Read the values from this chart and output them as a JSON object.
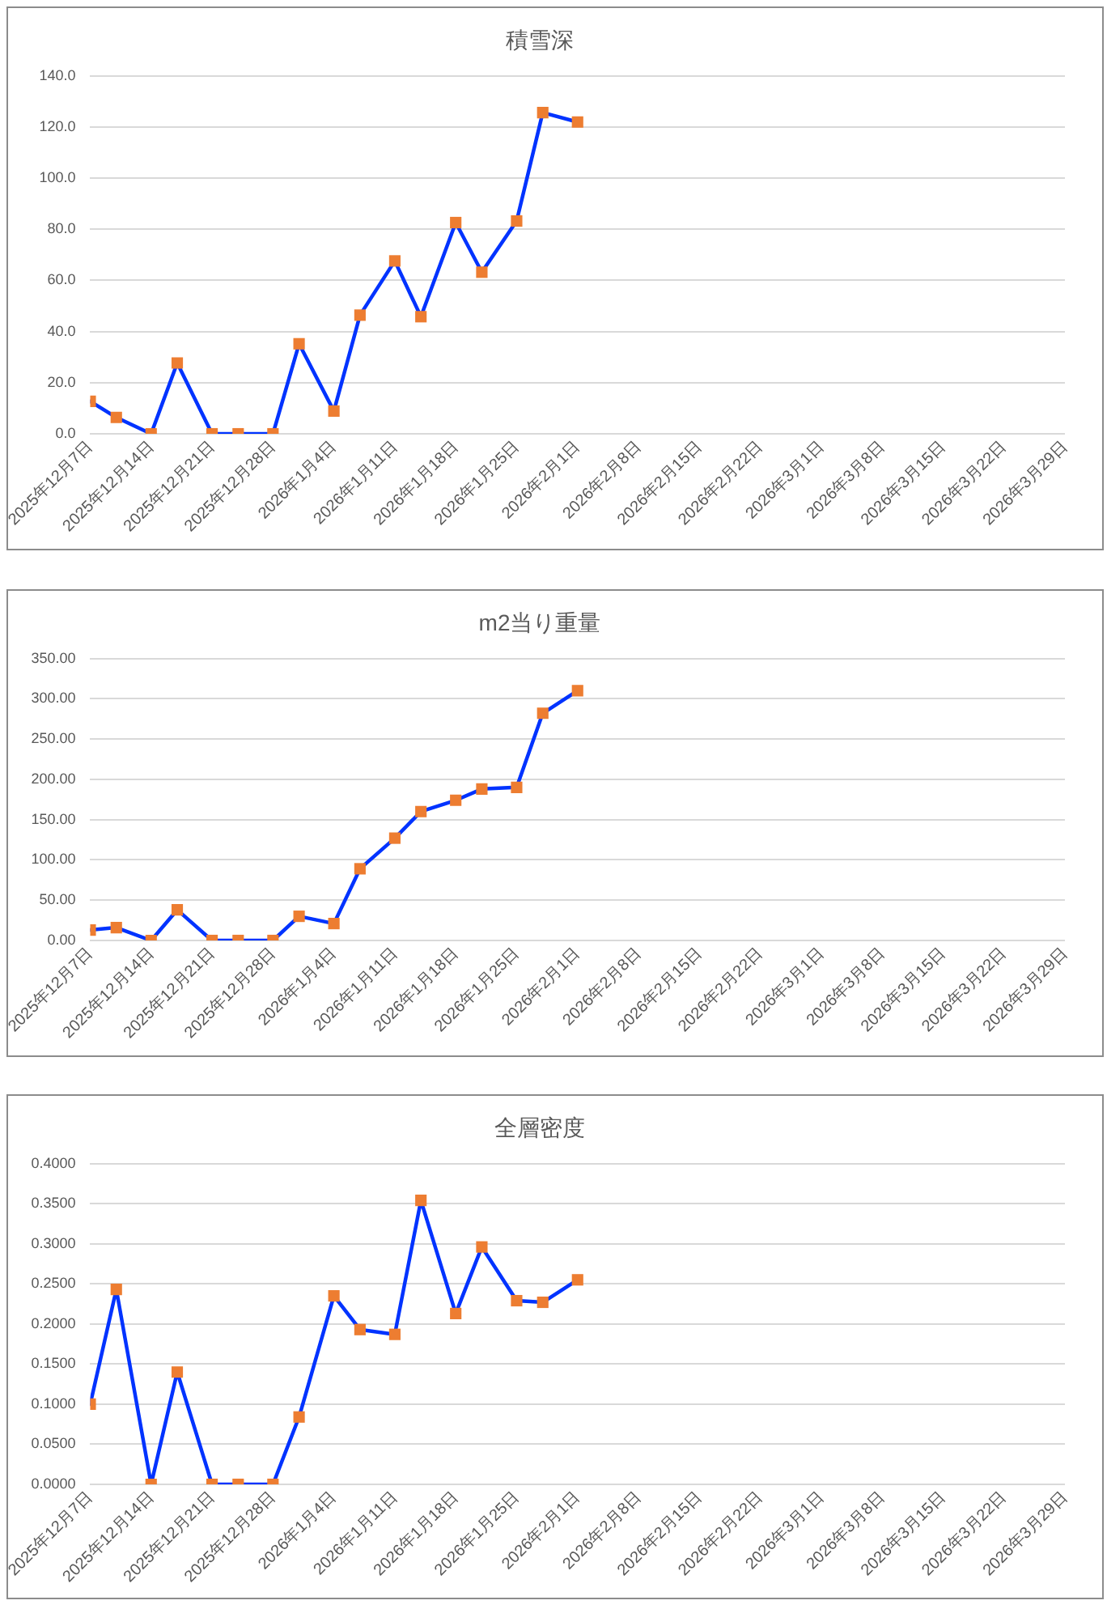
{
  "chart_data": [
    {
      "type": "line",
      "title": "積雪深",
      "x": [
        "2025-12-07",
        "2025-12-10",
        "2025-12-14",
        "2025-12-17",
        "2025-12-21",
        "2025-12-24",
        "2025-12-28",
        "2025-12-31",
        "2026-01-04",
        "2026-01-07",
        "2026-01-11",
        "2026-01-14",
        "2026-01-18",
        "2026-01-21",
        "2026-01-25",
        "2026-01-28",
        "2026-02-01"
      ],
      "values": [
        12.7,
        6.4,
        0,
        27.7,
        0,
        0,
        0,
        35.2,
        8.9,
        46.4,
        67.6,
        45.8,
        82.6,
        63.2,
        83.2,
        125.6,
        121.9
      ],
      "color": "#0033ff",
      "colors": [
        "#ed7d31",
        "#ed7d31",
        "#ed7d31",
        "#ed7d31",
        "#ed7d31",
        "#ed7d31",
        "#ed7d31",
        "#ed7d31",
        "#ed7d31",
        "#ed7d31",
        "#ed7d31",
        "#ed7d31",
        "#ed7d31",
        "#ed7d31",
        "#ed7d31",
        "#ed7d31",
        "#ed7d31"
      ],
      "marker": "square",
      "line_style": "solid",
      "grid": "y",
      "xlim": [
        "2025-12-07",
        "2026-03-29"
      ],
      "xticks": [
        {
          "value": "2025-12-07",
          "label": "2025年12月7日"
        },
        {
          "value": "2025-12-14",
          "label": "2025年12月14日"
        },
        {
          "value": "2025-12-21",
          "label": "2025年12月21日"
        },
        {
          "value": "2025-12-28",
          "label": "2025年12月28日"
        },
        {
          "value": "2026-01-04",
          "label": "2026年1月4日"
        },
        {
          "value": "2026-01-11",
          "label": "2026年1月11日"
        },
        {
          "value": "2026-01-18",
          "label": "2026年1月18日"
        },
        {
          "value": "2026-01-25",
          "label": "2026年1月25日"
        },
        {
          "value": "2026-02-01",
          "label": "2026年2月1日"
        },
        {
          "value": "2026-02-08",
          "label": "2026年2月8日"
        },
        {
          "value": "2026-02-15",
          "label": "2026年2月15日"
        },
        {
          "value": "2026-02-22",
          "label": "2026年2月22日"
        },
        {
          "value": "2026-03-01",
          "label": "2026年3月1日"
        },
        {
          "value": "2026-03-08",
          "label": "2026年3月8日"
        },
        {
          "value": "2026-03-15",
          "label": "2026年3月15日"
        },
        {
          "value": "2026-03-22",
          "label": "2026年3月22日"
        },
        {
          "value": "2026-03-29",
          "label": "2026年3月29日"
        }
      ],
      "ylim": [
        0,
        140
      ],
      "yticks": [
        {
          "value": 0,
          "label": "0.0"
        },
        {
          "value": 20,
          "label": "20.0"
        },
        {
          "value": 40,
          "label": "40.0"
        },
        {
          "value": 60,
          "label": "60.0"
        },
        {
          "value": 80,
          "label": "80.0"
        },
        {
          "value": 100,
          "label": "100.0"
        },
        {
          "value": 120,
          "label": "120.0"
        },
        {
          "value": 140,
          "label": "140.0"
        }
      ]
    },
    {
      "type": "line",
      "title": "m2当り重量",
      "x": [
        "2025-12-07",
        "2025-12-10",
        "2025-12-14",
        "2025-12-17",
        "2025-12-21",
        "2025-12-24",
        "2025-12-28",
        "2025-12-31",
        "2026-01-04",
        "2026-01-07",
        "2026-01-11",
        "2026-01-14",
        "2026-01-18",
        "2026-01-21",
        "2026-01-25",
        "2026-01-28",
        "2026-02-01"
      ],
      "values": [
        13,
        16,
        0,
        38,
        0,
        0,
        0,
        30,
        21,
        89,
        127,
        160,
        174,
        188,
        190,
        282,
        310
      ],
      "color": "#0033ff",
      "colors": [
        "#ed7d31",
        "#ed7d31",
        "#ed7d31",
        "#ed7d31",
        "#ed7d31",
        "#ed7d31",
        "#ed7d31",
        "#ed7d31",
        "#ed7d31",
        "#ed7d31",
        "#ed7d31",
        "#ed7d31",
        "#ed7d31",
        "#ed7d31",
        "#ed7d31",
        "#ed7d31",
        "#ed7d31"
      ],
      "marker": "square",
      "line_style": "solid",
      "grid": "y",
      "xlim": [
        "2025-12-07",
        "2026-03-29"
      ],
      "xticks": [
        {
          "value": "2025-12-07",
          "label": "2025年12月7日"
        },
        {
          "value": "2025-12-14",
          "label": "2025年12月14日"
        },
        {
          "value": "2025-12-21",
          "label": "2025年12月21日"
        },
        {
          "value": "2025-12-28",
          "label": "2025年12月28日"
        },
        {
          "value": "2026-01-04",
          "label": "2026年1月4日"
        },
        {
          "value": "2026-01-11",
          "label": "2026年1月11日"
        },
        {
          "value": "2026-01-18",
          "label": "2026年1月18日"
        },
        {
          "value": "2026-01-25",
          "label": "2026年1月25日"
        },
        {
          "value": "2026-02-01",
          "label": "2026年2月1日"
        },
        {
          "value": "2026-02-08",
          "label": "2026年2月8日"
        },
        {
          "value": "2026-02-15",
          "label": "2026年2月15日"
        },
        {
          "value": "2026-02-22",
          "label": "2026年2月22日"
        },
        {
          "value": "2026-03-01",
          "label": "2026年3月1日"
        },
        {
          "value": "2026-03-08",
          "label": "2026年3月8日"
        },
        {
          "value": "2026-03-15",
          "label": "2026年3月15日"
        },
        {
          "value": "2026-03-22",
          "label": "2026年3月22日"
        },
        {
          "value": "2026-03-29",
          "label": "2026年3月29日"
        }
      ],
      "ylim": [
        0,
        350
      ],
      "yticks": [
        {
          "value": 0,
          "label": "0.00"
        },
        {
          "value": 50,
          "label": "50.00"
        },
        {
          "value": 100,
          "label": "100.00"
        },
        {
          "value": 150,
          "label": "150.00"
        },
        {
          "value": 200,
          "label": "200.00"
        },
        {
          "value": 250,
          "label": "250.00"
        },
        {
          "value": 300,
          "label": "300.00"
        },
        {
          "value": 350,
          "label": "350.00"
        }
      ]
    },
    {
      "type": "line",
      "title": "全層密度",
      "x": [
        "2025-12-07",
        "2025-12-10",
        "2025-12-14",
        "2025-12-17",
        "2025-12-21",
        "2025-12-24",
        "2025-12-28",
        "2025-12-31",
        "2026-01-04",
        "2026-01-07",
        "2026-01-11",
        "2026-01-14",
        "2026-01-18",
        "2026-01-21",
        "2026-01-25",
        "2026-01-28",
        "2026-02-01"
      ],
      "values": [
        0.1,
        0.243,
        0,
        0.14,
        0,
        0,
        0,
        0.084,
        0.235,
        0.193,
        0.187,
        0.354,
        0.213,
        0.296,
        0.229,
        0.227,
        0.255
      ],
      "color": "#0033ff",
      "colors": [
        "#ed7d31",
        "#ed7d31",
        "#ed7d31",
        "#ed7d31",
        "#ed7d31",
        "#ed7d31",
        "#ed7d31",
        "#ed7d31",
        "#ed7d31",
        "#ed7d31",
        "#ed7d31",
        "#ed7d31",
        "#ed7d31",
        "#ed7d31",
        "#ed7d31",
        "#ed7d31",
        "#ed7d31"
      ],
      "marker": "square",
      "line_style": "solid",
      "grid": "y",
      "xlim": [
        "2025-12-07",
        "2026-03-29"
      ],
      "xticks": [
        {
          "value": "2025-12-07",
          "label": "2025年12月7日"
        },
        {
          "value": "2025-12-14",
          "label": "2025年12月14日"
        },
        {
          "value": "2025-12-21",
          "label": "2025年12月21日"
        },
        {
          "value": "2025-12-28",
          "label": "2025年12月28日"
        },
        {
          "value": "2026-01-04",
          "label": "2026年1月4日"
        },
        {
          "value": "2026-01-11",
          "label": "2026年1月11日"
        },
        {
          "value": "2026-01-18",
          "label": "2026年1月18日"
        },
        {
          "value": "2026-01-25",
          "label": "2026年1月25日"
        },
        {
          "value": "2026-02-01",
          "label": "2026年2月1日"
        },
        {
          "value": "2026-02-08",
          "label": "2026年2月8日"
        },
        {
          "value": "2026-02-15",
          "label": "2026年2月15日"
        },
        {
          "value": "2026-02-22",
          "label": "2026年2月22日"
        },
        {
          "value": "2026-03-01",
          "label": "2026年3月1日"
        },
        {
          "value": "2026-03-08",
          "label": "2026年3月8日"
        },
        {
          "value": "2026-03-15",
          "label": "2026年3月15日"
        },
        {
          "value": "2026-03-22",
          "label": "2026年3月22日"
        },
        {
          "value": "2026-03-29",
          "label": "2026年3月29日"
        }
      ],
      "ylim": [
        0,
        0.4
      ],
      "yticks": [
        {
          "value": 0,
          "label": "0.0000"
        },
        {
          "value": 0.05,
          "label": "0.0500"
        },
        {
          "value": 0.1,
          "label": "0.1000"
        },
        {
          "value": 0.15,
          "label": "0.1500"
        },
        {
          "value": 0.2,
          "label": "0.2000"
        },
        {
          "value": 0.25,
          "label": "0.2500"
        },
        {
          "value": 0.3,
          "label": "0.3000"
        },
        {
          "value": 0.35,
          "label": "0.3500"
        },
        {
          "value": 0.4,
          "label": "0.4000"
        }
      ]
    }
  ]
}
